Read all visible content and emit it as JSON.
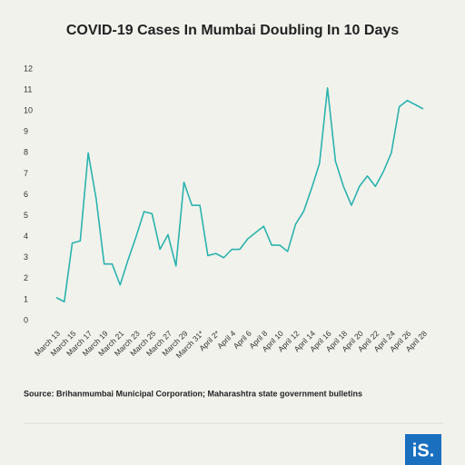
{
  "chart_data": {
    "type": "line",
    "title": "COVID-19 Cases In Mumbai Doubling In 10 Days",
    "categories": [
      "March 13",
      null,
      "March 15",
      null,
      "March 17",
      null,
      "March 19",
      null,
      "March 21",
      null,
      "March 23",
      null,
      "March 25",
      null,
      "March 27",
      null,
      "March 29",
      null,
      "March 31*",
      null,
      "April 2*",
      null,
      "April 4",
      null,
      "April 6",
      null,
      "April 8",
      null,
      "April 10",
      null,
      "April 12",
      null,
      "April 14",
      null,
      "April 16",
      null,
      "April 18",
      null,
      "April 20",
      null,
      "April 22",
      null,
      "April 24",
      null,
      "April 26",
      null,
      "April 28"
    ],
    "values": [
      1.1,
      0.9,
      3.7,
      3.8,
      8.0,
      5.8,
      2.7,
      2.7,
      1.7,
      2.9,
      4.0,
      5.2,
      5.1,
      3.4,
      4.1,
      2.6,
      6.6,
      5.5,
      5.5,
      3.1,
      3.2,
      3.0,
      3.4,
      3.4,
      3.9,
      4.2,
      4.5,
      3.6,
      3.6,
      3.3,
      4.6,
      5.2,
      6.3,
      7.5,
      11.1,
      7.6,
      6.4,
      5.5,
      6.4,
      6.9,
      6.4,
      7.1,
      8.0,
      10.2,
      10.5,
      10.3,
      10.1
    ],
    "color": "#2bb3ad",
    "ylim": [
      0,
      12
    ],
    "yticks": [
      0,
      1,
      2,
      3,
      4,
      5,
      6,
      7,
      8,
      9,
      10,
      11,
      12
    ],
    "grid": false
  },
  "source": "Source: Brihanmumbai Municipal Corporation; Maharashtra state government bulletins",
  "logo": "iS."
}
